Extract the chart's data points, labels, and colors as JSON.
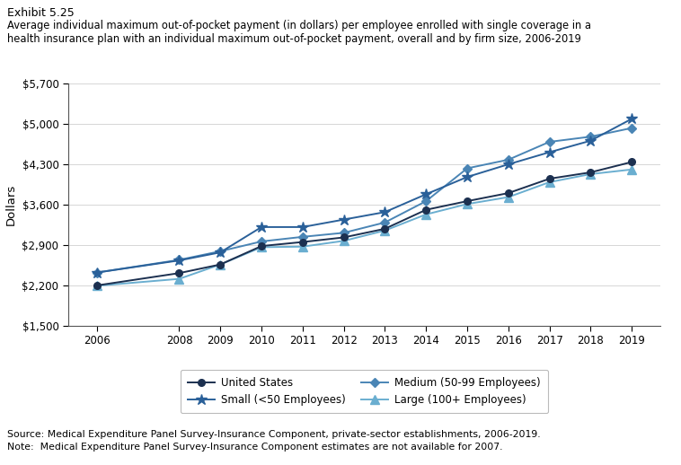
{
  "title_exhibit": "Exhibit 5.25",
  "title_main": "Average individual maximum out-of-pocket payment (in dollars) per employee enrolled with single coverage in a\nhealth insurance plan with an individual maximum out-of-pocket payment, overall and by firm size, 2006-2019",
  "years": [
    2006,
    2008,
    2009,
    2010,
    2011,
    2012,
    2013,
    2014,
    2015,
    2016,
    2017,
    2018,
    2019
  ],
  "united_states": [
    2196,
    2410,
    2560,
    2880,
    2950,
    3030,
    3180,
    3510,
    3660,
    3800,
    4050,
    4160,
    4340
  ],
  "small": [
    2420,
    2630,
    2770,
    3210,
    3210,
    3340,
    3470,
    3780,
    4080,
    4300,
    4510,
    4710,
    5090
  ],
  "medium": [
    2420,
    2640,
    2790,
    2960,
    3040,
    3110,
    3290,
    3660,
    4230,
    4380,
    4690,
    4780,
    4930
  ],
  "large": [
    2190,
    2310,
    2560,
    2860,
    2870,
    2970,
    3150,
    3430,
    3610,
    3730,
    3990,
    4130,
    4210
  ],
  "color_us": "#1c3050",
  "color_small": "#2a6099",
  "color_medium": "#4a85b5",
  "color_large": "#6aaed0",
  "ylabel": "Dollars",
  "ylim": [
    1500,
    5700
  ],
  "yticks": [
    1500,
    2200,
    2900,
    3600,
    4300,
    5000,
    5700
  ],
  "source_text": "Source: Medical Expenditure Panel Survey-Insurance Component, private-sector establishments, 2006-2019.",
  "note_text": "Note:  Medical Expenditure Panel Survey-Insurance Component estimates are not available for 2007."
}
